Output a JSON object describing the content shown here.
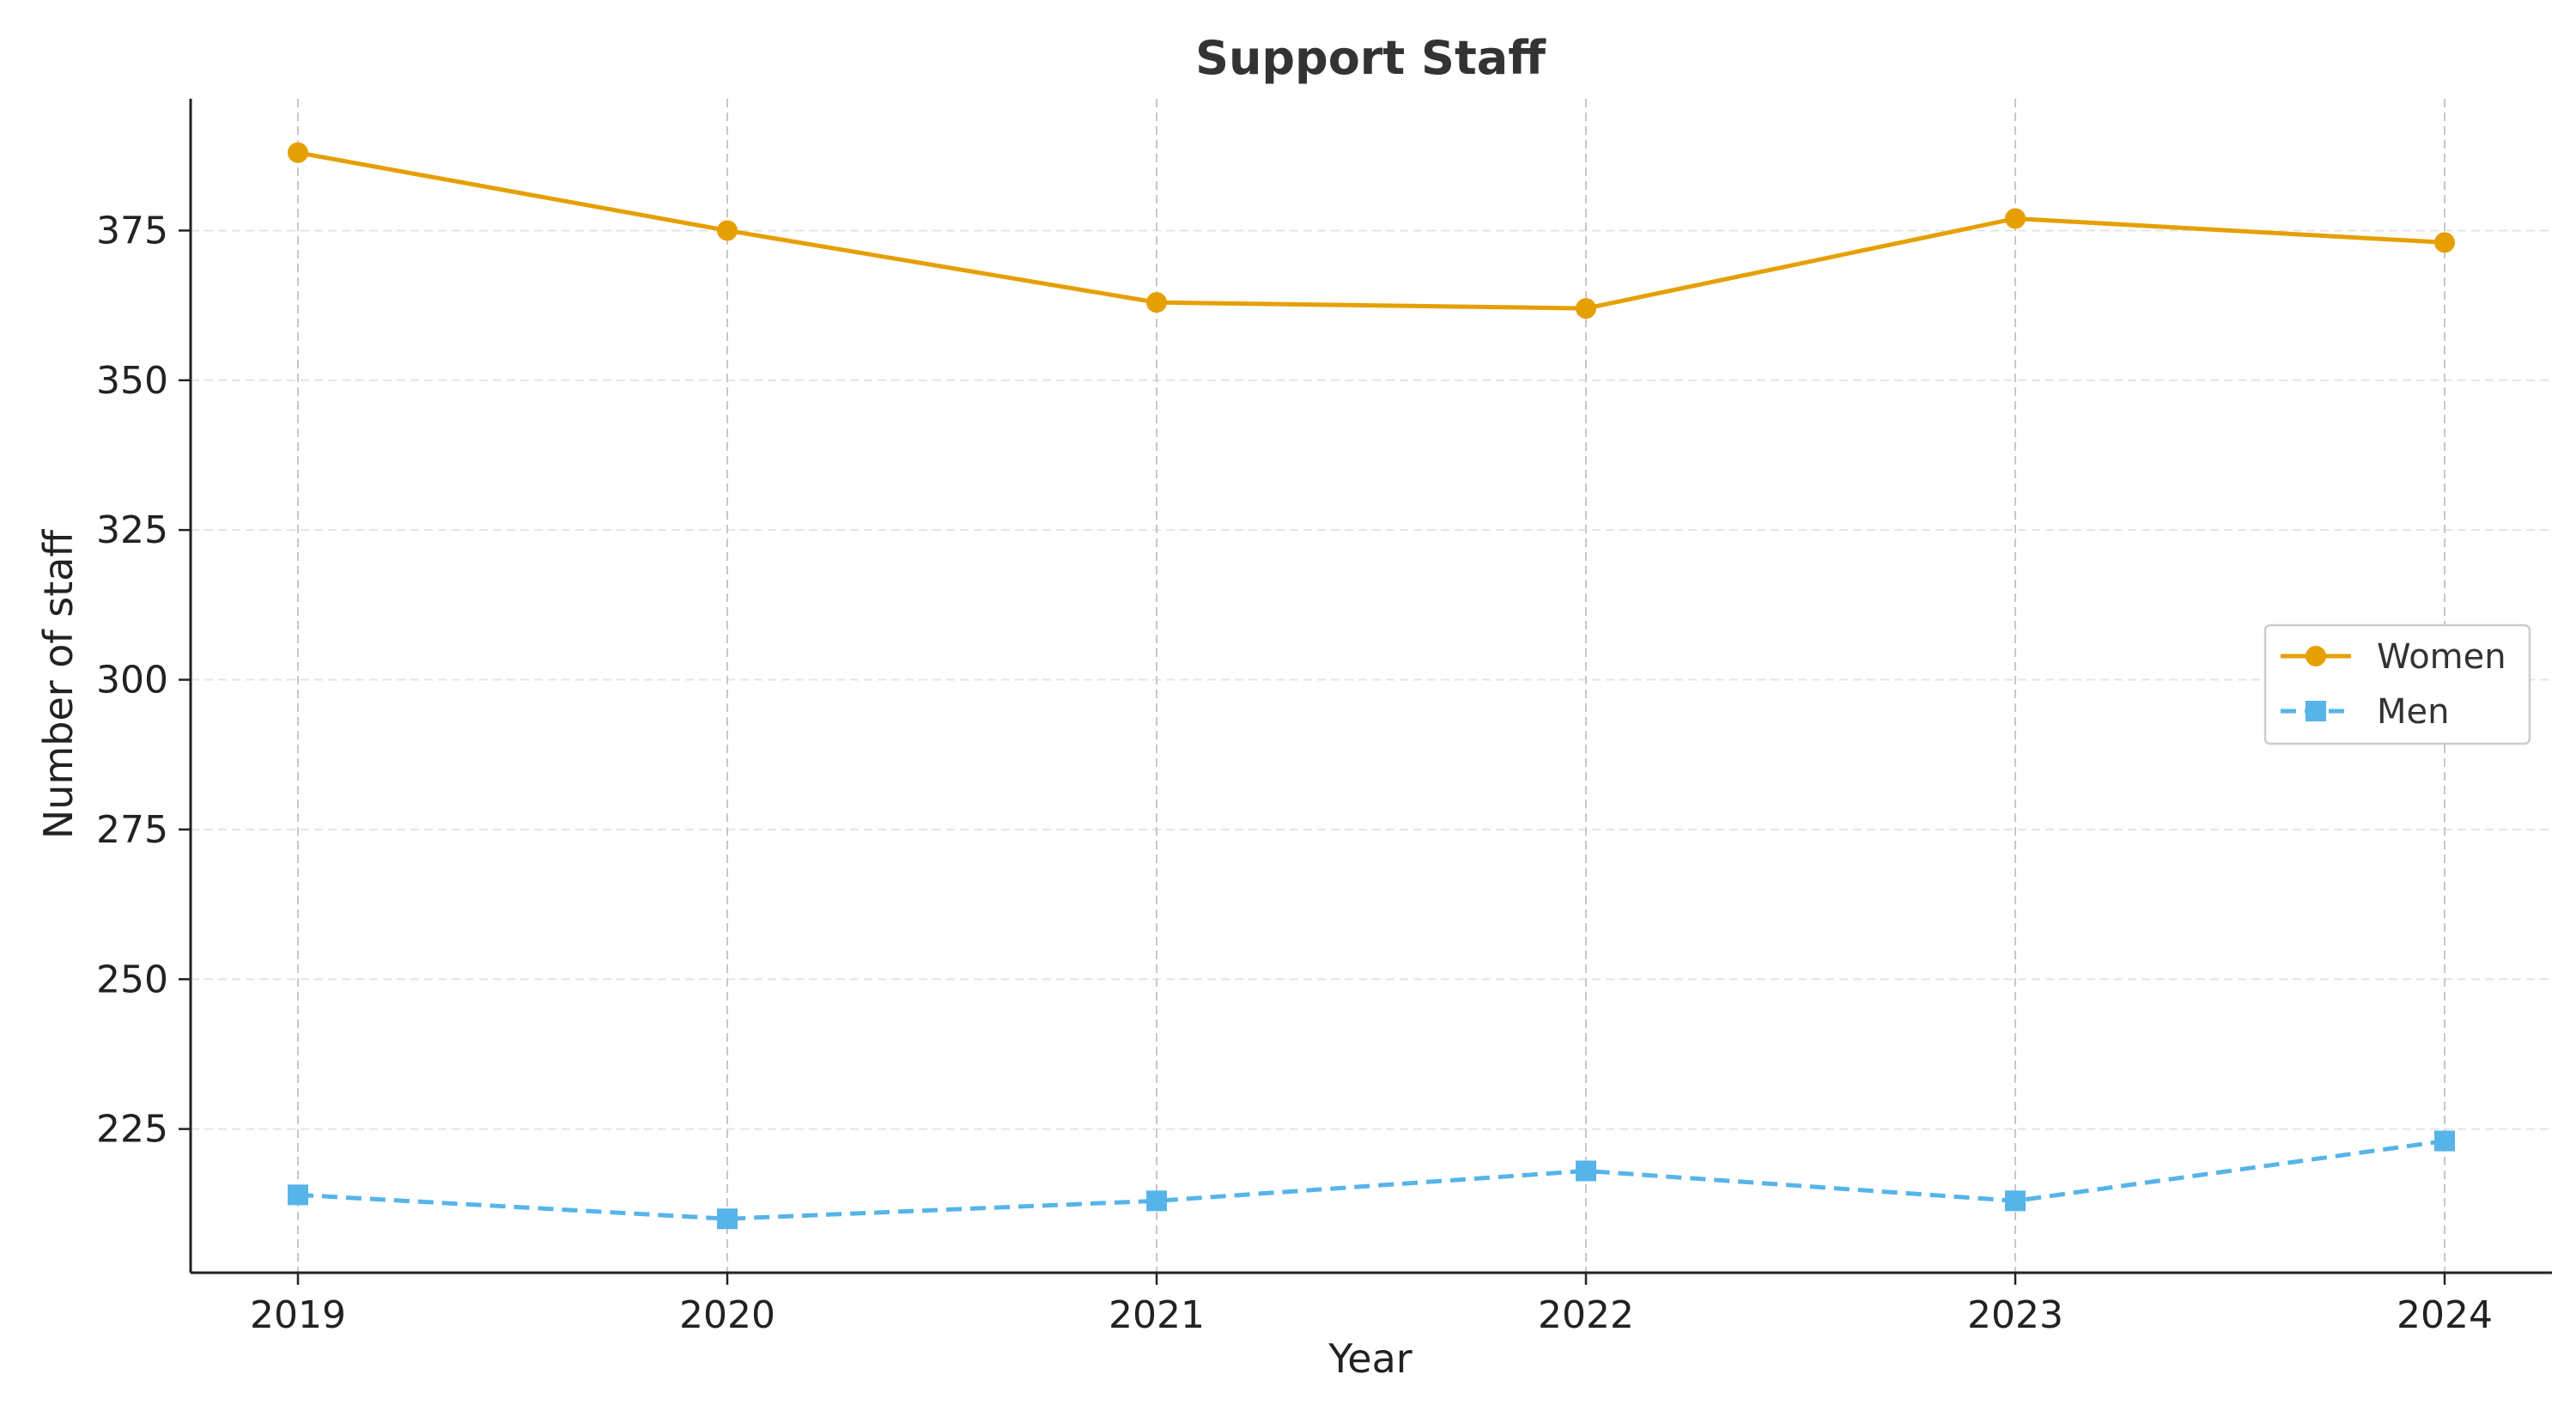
{
  "chart_data": {
    "type": "line",
    "title": "Support Staff",
    "xlabel": "Year",
    "ylabel": "Number of staff",
    "x": [
      2019,
      2020,
      2021,
      2022,
      2023,
      2024
    ],
    "x_tick_labels": [
      "2019",
      "2020",
      "2021",
      "2022",
      "2023",
      "2024"
    ],
    "y_ticks": [
      225,
      250,
      275,
      300,
      325,
      350,
      375
    ],
    "y_tick_labels": [
      "225",
      "250",
      "275",
      "300",
      "325",
      "350",
      "375"
    ],
    "xlim": [
      2018.75,
      2024.25
    ],
    "ylim": [
      201,
      397
    ],
    "grid": true,
    "legend_position": "center-right",
    "series": [
      {
        "name": "Women",
        "values": [
          388,
          375,
          363,
          362,
          377,
          373
        ],
        "color": "#E69F00",
        "marker": "circle",
        "line_style": "solid"
      },
      {
        "name": "Men",
        "values": [
          214,
          210,
          213,
          218,
          213,
          223
        ],
        "color": "#56B4E9",
        "marker": "square",
        "line_style": "dashed"
      }
    ]
  }
}
